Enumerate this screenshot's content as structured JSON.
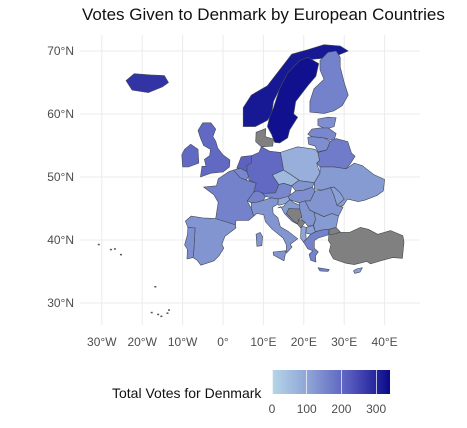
{
  "title": "Votes Given to Denmark by European Countries",
  "axes": {
    "lat_ticks": [
      "30°N",
      "40°N",
      "50°N",
      "60°N",
      "70°N"
    ],
    "lon_ticks": [
      "30°W",
      "20°W",
      "10°W",
      "0°",
      "10°E",
      "20°E",
      "30°E",
      "40°E"
    ],
    "lat_range": [
      25,
      73
    ],
    "lon_range": [
      -35,
      45
    ]
  },
  "legend": {
    "title": "Total Votes for Denmark",
    "labels": [
      "0",
      "100",
      "200",
      "300"
    ],
    "colors": [
      "#b5d6e8",
      "#8a9fd4",
      "#5558bd",
      "#0a0a8a"
    ],
    "no_data_color": "#808080"
  },
  "countries": [
    {
      "name": "Iceland",
      "votes": 280
    },
    {
      "name": "Norway",
      "votes": 320
    },
    {
      "name": "Sweden",
      "votes": 330
    },
    {
      "name": "Finland",
      "votes": 160
    },
    {
      "name": "Estonia",
      "votes": 140
    },
    {
      "name": "Latvia",
      "votes": 150
    },
    {
      "name": "Lithuania",
      "votes": 140
    },
    {
      "name": "Ireland",
      "votes": 200
    },
    {
      "name": "United Kingdom",
      "votes": 200
    },
    {
      "name": "Netherlands",
      "votes": 210
    },
    {
      "name": "Belgium",
      "votes": 150
    },
    {
      "name": "Germany",
      "votes": 200
    },
    {
      "name": "Poland",
      "votes": 80
    },
    {
      "name": "Belarus",
      "votes": 170
    },
    {
      "name": "Ukraine",
      "votes": 120
    },
    {
      "name": "Czech Republic",
      "votes": 60
    },
    {
      "name": "Slovakia",
      "votes": 130
    },
    {
      "name": "Hungary",
      "votes": 140
    },
    {
      "name": "Austria",
      "votes": 150
    },
    {
      "name": "Switzerland",
      "votes": 160
    },
    {
      "name": "France",
      "votes": 160
    },
    {
      "name": "Spain",
      "votes": 130
    },
    {
      "name": "Portugal",
      "votes": 140
    },
    {
      "name": "Italy",
      "votes": 130
    },
    {
      "name": "Slovenia",
      "votes": 90
    },
    {
      "name": "Croatia",
      "votes": 120
    },
    {
      "name": "Serbia",
      "votes": 130
    },
    {
      "name": "Romania",
      "votes": 130
    },
    {
      "name": "Moldova",
      "votes": 110
    },
    {
      "name": "Bulgaria",
      "votes": 120
    },
    {
      "name": "North Macedonia",
      "votes": 110
    },
    {
      "name": "Albania",
      "votes": 100
    },
    {
      "name": "Greece",
      "votes": 160
    },
    {
      "name": "Cyprus",
      "votes": 110
    },
    {
      "name": "Turkey",
      "votes": null
    },
    {
      "name": "Bosnia and Herzegovina",
      "votes": null
    },
    {
      "name": "Montenegro",
      "votes": null
    },
    {
      "name": "Denmark",
      "votes": null
    }
  ]
}
